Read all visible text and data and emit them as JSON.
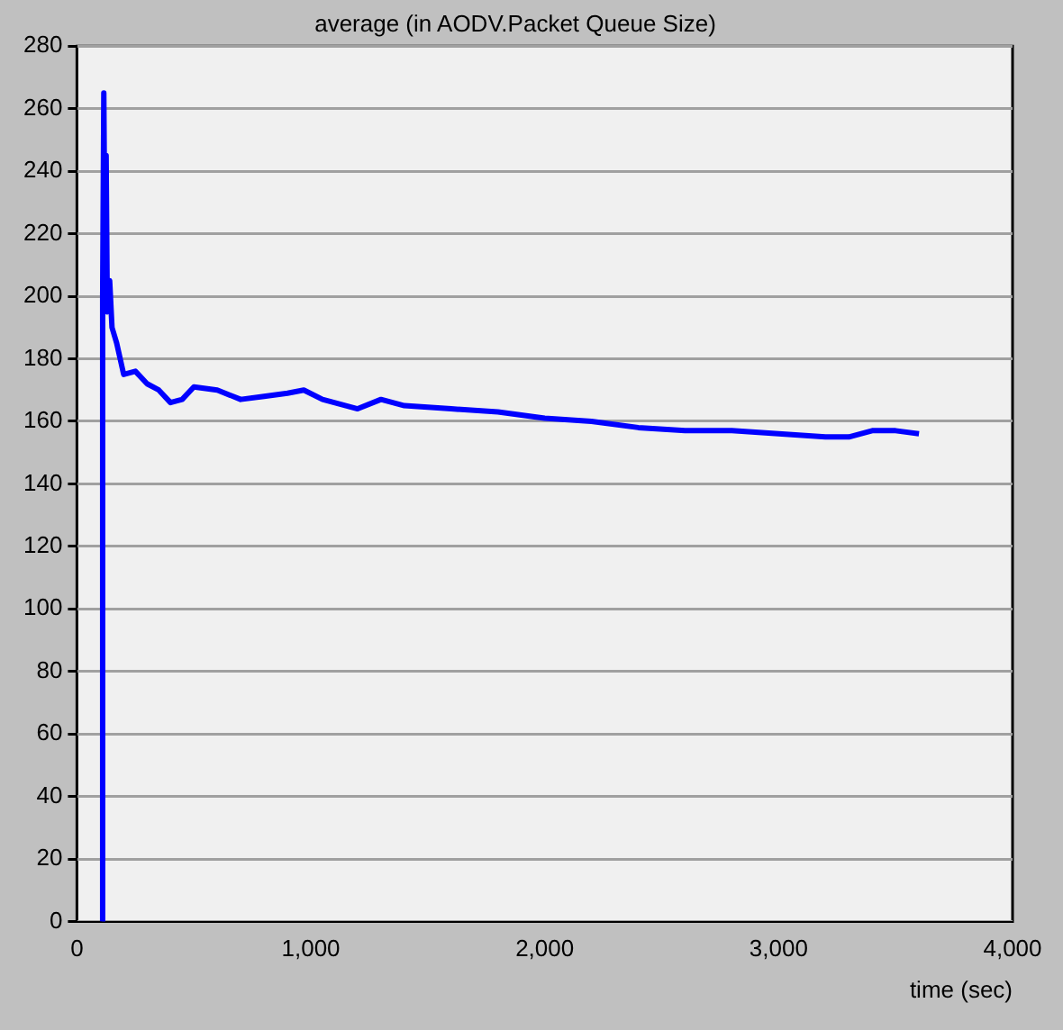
{
  "chart_data": {
    "type": "line",
    "title": "average (in AODV.Packet Queue Size)",
    "xlabel": "time (sec)",
    "x": [
      105,
      110,
      115,
      120,
      125,
      130,
      140,
      150,
      170,
      200,
      250,
      300,
      350,
      400,
      450,
      500,
      600,
      700,
      800,
      900,
      970,
      1050,
      1150,
      1200,
      1300,
      1400,
      1600,
      1800,
      2000,
      2200,
      2400,
      2600,
      2800,
      3000,
      3200,
      3300,
      3400,
      3500,
      3600
    ],
    "series": [
      {
        "color": "#0000ff",
        "values": [
          0,
          200,
          265,
          210,
          245,
          195,
          205,
          190,
          185,
          175,
          176,
          172,
          170,
          166,
          167,
          171,
          170,
          167,
          168,
          169,
          170,
          167,
          165,
          164,
          167,
          165,
          164,
          163,
          161,
          160,
          158,
          157,
          157,
          156,
          155,
          155,
          157,
          157,
          156
        ]
      }
    ],
    "xlim": [
      0,
      4000
    ],
    "xticks": [
      {
        "value": 0,
        "label": "0"
      },
      {
        "value": 1000,
        "label": "1,000"
      },
      {
        "value": 2000,
        "label": "2,000"
      },
      {
        "value": 3000,
        "label": "3,000"
      },
      {
        "value": 4000,
        "label": "4,000"
      }
    ],
    "ylim": [
      0,
      280
    ],
    "yticks": [
      0,
      20,
      40,
      60,
      80,
      100,
      120,
      140,
      160,
      180,
      200,
      220,
      240,
      260,
      280
    ],
    "grid": "y",
    "marker": "none",
    "line_style": "solid",
    "legend": false
  }
}
